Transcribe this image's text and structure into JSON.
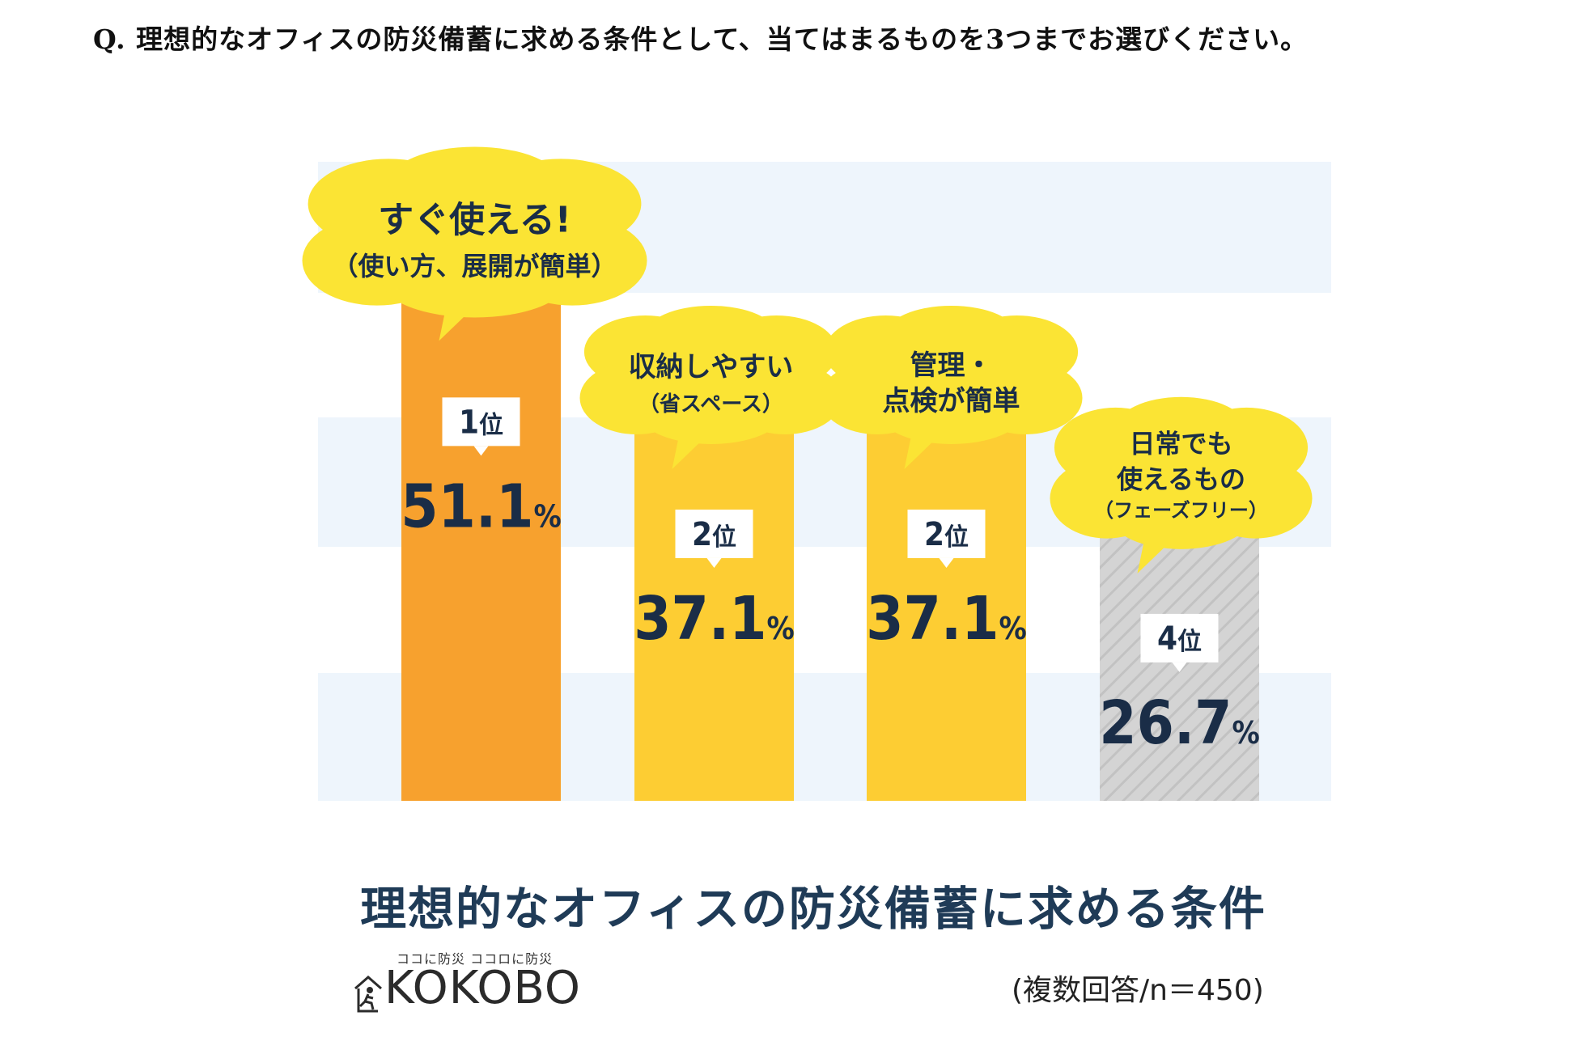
{
  "question": "Q. 理想的なオフィスの防災備蓄に求める条件として、当てはまるものを3つまでお選びください。",
  "chart_data": {
    "type": "bar",
    "title": "理想的なオフィスの防災備蓄に求める条件",
    "note": "(複数回答/n＝450)",
    "ylim": [
      0,
      60
    ],
    "categories": [
      {
        "lines": [
          "すぐ使える!",
          "（使い方、展開が簡単）"
        ]
      },
      {
        "lines": [
          "収納しやすい",
          "（省スペース）"
        ]
      },
      {
        "lines": [
          "管理・",
          "点検が簡単"
        ]
      },
      {
        "lines": [
          "日常でも",
          "使えるもの",
          "（フェーズフリー）"
        ]
      }
    ],
    "values": [
      51.1,
      37.1,
      37.1,
      26.7
    ],
    "value_labels": [
      "51.1",
      "37.1",
      "37.1",
      "26.7"
    ],
    "percent_sign": "%",
    "ranks": [
      "1",
      "2",
      "2",
      "4"
    ],
    "rank_suffix": "位",
    "bar_colors": [
      "#f7a12e",
      "#fdcd33",
      "#fdcd33",
      "#d2d2d2"
    ],
    "bubble_color": "#fbe434",
    "band_color": "#eef5fc",
    "text_color": "#1a2d47"
  },
  "logo": {
    "tagline": "ココに防災 ココロに防災",
    "wordmark": "KOKOBO"
  }
}
